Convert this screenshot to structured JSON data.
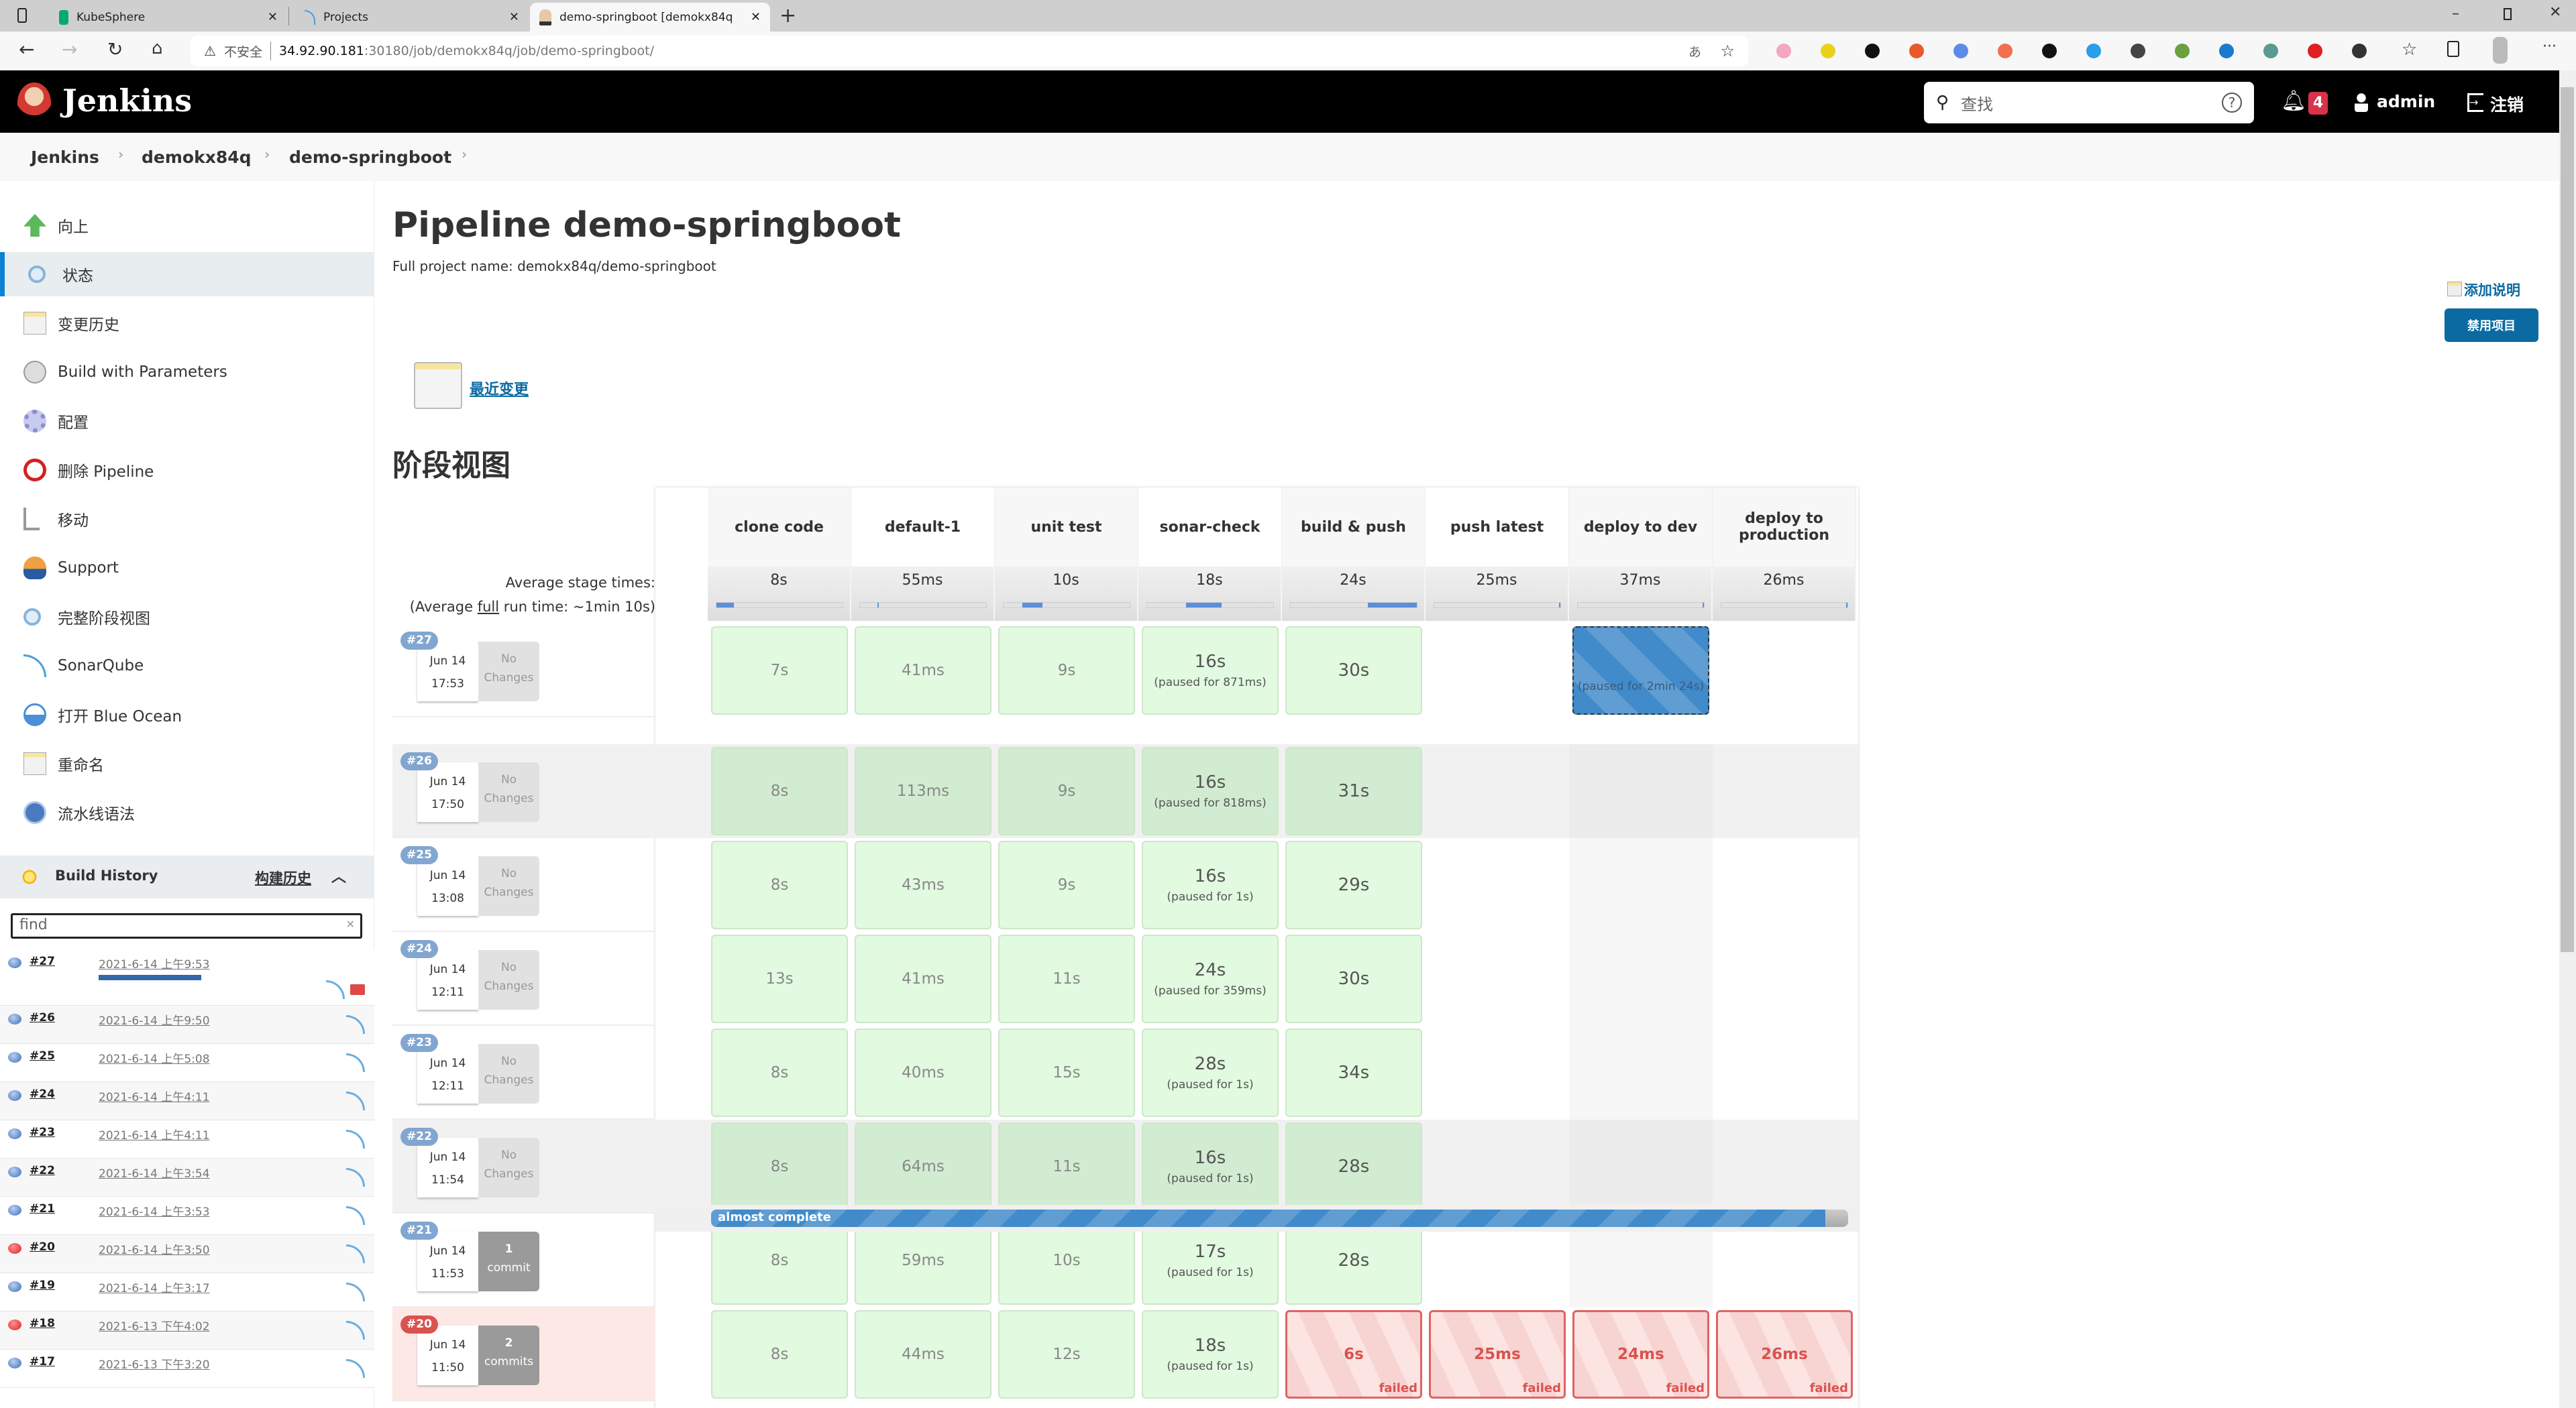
{
  "browser": {
    "tabs": [
      {
        "title": "KubeSphere",
        "icon": "kubesphere-icon",
        "color": "#00aa72"
      },
      {
        "title": "Projects",
        "icon": "sonarqube-icon",
        "color": "#4a9fd8"
      },
      {
        "title": "demo-springboot [demokx84q]",
        "icon": "jenkins-icon",
        "color": "#d33833"
      }
    ],
    "security_label": "不安全",
    "url_host": "34.92.90.181",
    "url_rest": ":30180/job/demokx84q/job/demo-springboot/",
    "extensions": [
      "#f4a7c0",
      "#e8d21a",
      "#111111",
      "#e85a2a",
      "#5a8de8",
      "#f07050",
      "#111111",
      "#2a9ee8",
      "#444444",
      "#6aa040",
      "#1a7ad0",
      "#5a9a90",
      "#e02020",
      "#333333"
    ]
  },
  "header": {
    "brand": "Jenkins",
    "search_placeholder": "查找",
    "notifications": "4",
    "user": "admin",
    "logout": "注销"
  },
  "breadcrumbs": [
    "Jenkins",
    "demokx84q",
    "demo-springboot"
  ],
  "sidebar": {
    "items": [
      {
        "label": "向上",
        "icon": "arrow-up-icon"
      },
      {
        "label": "状态",
        "icon": "magnifier-icon",
        "selected": true
      },
      {
        "label": "变更历史",
        "icon": "notepad-icon"
      },
      {
        "label": "Build with Parameters",
        "icon": "clock-play-icon"
      },
      {
        "label": "配置",
        "icon": "gear-icon"
      },
      {
        "label": "删除 Pipeline",
        "icon": "no-entry-icon"
      },
      {
        "label": "移动",
        "icon": "move-icon"
      },
      {
        "label": "Support",
        "icon": "support-person-icon"
      },
      {
        "label": "完整阶段视图",
        "icon": "magnifier-icon"
      },
      {
        "label": "SonarQube",
        "icon": "sonarqube-icon"
      },
      {
        "label": "打开 Blue Ocean",
        "icon": "blue-ocean-icon"
      },
      {
        "label": "重命名",
        "icon": "notepad-icon"
      },
      {
        "label": "流水线语法",
        "icon": "help-icon"
      }
    ]
  },
  "build_history": {
    "title": "Build History",
    "link": "构建历史",
    "find_placeholder": "find",
    "running_progress": 0.92,
    "rows": [
      {
        "num": "#27",
        "date": "2021-6-14 上午9:53",
        "status": "running"
      },
      {
        "num": "#26",
        "date": "2021-6-14 上午9:50",
        "status": "success"
      },
      {
        "num": "#25",
        "date": "2021-6-14 上午5:08",
        "status": "success"
      },
      {
        "num": "#24",
        "date": "2021-6-14 上午4:11",
        "status": "success"
      },
      {
        "num": "#23",
        "date": "2021-6-14 上午4:11",
        "status": "success"
      },
      {
        "num": "#22",
        "date": "2021-6-14 上午3:54",
        "status": "success"
      },
      {
        "num": "#21",
        "date": "2021-6-14 上午3:53",
        "status": "success"
      },
      {
        "num": "#20",
        "date": "2021-6-14 上午3:50",
        "status": "failed"
      },
      {
        "num": "#19",
        "date": "2021-6-14 上午3:17",
        "status": "success"
      },
      {
        "num": "#18",
        "date": "2021-6-13 下午4:02",
        "status": "failed"
      },
      {
        "num": "#17",
        "date": "2021-6-13 下午3:20",
        "status": "success"
      }
    ]
  },
  "main": {
    "title": "Pipeline demo-springboot",
    "full_name": "Full project name: demokx84q/demo-springboot",
    "add_description": "添加说明",
    "disable_button": "禁用项目",
    "recent_changes": "最近变更",
    "stage_view_title": "阶段视图"
  },
  "stage_view": {
    "avg_label": "Average stage times:",
    "avg_full_prefix": "(Average ",
    "avg_full_link": "full",
    "avg_full_suffix": " run time: ~1min 10s)",
    "stages": [
      {
        "name": "clone code",
        "avg": "8s",
        "bar": [
          0,
          0.14
        ]
      },
      {
        "name": "default-1",
        "avg": "55ms",
        "bar": [
          0.14,
          0.15
        ]
      },
      {
        "name": "unit test",
        "avg": "10s",
        "bar": [
          0.15,
          0.31
        ]
      },
      {
        "name": "sonar-check",
        "avg": "18s",
        "bar": [
          0.31,
          0.59
        ]
      },
      {
        "name": "build & push",
        "avg": "24s",
        "bar": [
          0.61,
          1.0
        ]
      },
      {
        "name": "push latest",
        "avg": "25ms",
        "bar": [
          0.99,
          1.0
        ]
      },
      {
        "name": "deploy to dev",
        "avg": "37ms",
        "bar": [
          0.99,
          1.0
        ]
      },
      {
        "name": "deploy to production",
        "avg": "26ms",
        "bar": [
          0.99,
          1.0
        ]
      }
    ],
    "progress": {
      "label": "almost complete",
      "fraction": 0.98
    },
    "builds": [
      {
        "num": "#27",
        "date": "Jun 14",
        "time": "17:53",
        "changes": [
          "No",
          "Changes"
        ],
        "status": "running",
        "cells": [
          {
            "t": "7s",
            "s": "ok"
          },
          {
            "t": "41ms",
            "s": "ok"
          },
          {
            "t": "9s",
            "s": "ok"
          },
          {
            "t": "16s",
            "p": "(paused for 871ms)",
            "s": "ok"
          },
          {
            "t": "30s",
            "s": "ok"
          },
          {
            "s": "empty"
          },
          {
            "p": "(paused for 2min 24s)",
            "s": "paused"
          },
          {
            "s": "empty"
          }
        ]
      },
      {
        "num": "#26",
        "date": "Jun 14",
        "time": "17:50",
        "changes": [
          "No",
          "Changes"
        ],
        "status": "success",
        "cells": [
          {
            "t": "8s",
            "s": "ok"
          },
          {
            "t": "113ms",
            "s": "ok"
          },
          {
            "t": "9s",
            "s": "ok"
          },
          {
            "t": "16s",
            "p": "(paused for 818ms)",
            "s": "ok"
          },
          {
            "t": "31s",
            "s": "ok"
          },
          {
            "s": "empty"
          },
          {
            "s": "empty"
          },
          {
            "s": "empty"
          }
        ]
      },
      {
        "num": "#25",
        "date": "Jun 14",
        "time": "13:08",
        "changes": [
          "No",
          "Changes"
        ],
        "status": "success",
        "cells": [
          {
            "t": "8s",
            "s": "ok"
          },
          {
            "t": "43ms",
            "s": "ok"
          },
          {
            "t": "9s",
            "s": "ok"
          },
          {
            "t": "16s",
            "p": "(paused for 1s)",
            "s": "ok"
          },
          {
            "t": "29s",
            "s": "ok"
          },
          {
            "s": "empty"
          },
          {
            "s": "empty"
          },
          {
            "s": "empty"
          }
        ]
      },
      {
        "num": "#24",
        "date": "Jun 14",
        "time": "12:11",
        "changes": [
          "No",
          "Changes"
        ],
        "status": "success",
        "cells": [
          {
            "t": "13s",
            "s": "ok"
          },
          {
            "t": "41ms",
            "s": "ok"
          },
          {
            "t": "11s",
            "s": "ok"
          },
          {
            "t": "24s",
            "p": "(paused for 359ms)",
            "s": "ok"
          },
          {
            "t": "30s",
            "s": "ok"
          },
          {
            "s": "empty"
          },
          {
            "s": "empty"
          },
          {
            "s": "empty"
          }
        ]
      },
      {
        "num": "#23",
        "date": "Jun 14",
        "time": "12:11",
        "changes": [
          "No",
          "Changes"
        ],
        "status": "success",
        "cells": [
          {
            "t": "8s",
            "s": "ok"
          },
          {
            "t": "40ms",
            "s": "ok"
          },
          {
            "t": "15s",
            "s": "ok"
          },
          {
            "t": "28s",
            "p": "(paused for 1s)",
            "s": "ok"
          },
          {
            "t": "34s",
            "s": "ok"
          },
          {
            "s": "empty"
          },
          {
            "s": "empty"
          },
          {
            "s": "empty"
          }
        ]
      },
      {
        "num": "#22",
        "date": "Jun 14",
        "time": "11:54",
        "changes": [
          "No",
          "Changes"
        ],
        "status": "success",
        "cells": [
          {
            "t": "8s",
            "s": "ok"
          },
          {
            "t": "64ms",
            "s": "ok"
          },
          {
            "t": "11s",
            "s": "ok"
          },
          {
            "t": "16s",
            "p": "(paused for 1s)",
            "s": "ok"
          },
          {
            "t": "28s",
            "s": "ok"
          },
          {
            "s": "empty"
          },
          {
            "s": "empty"
          },
          {
            "s": "empty"
          }
        ]
      },
      {
        "num": "#21",
        "date": "Jun 14",
        "time": "11:53",
        "changes": [
          "1",
          "commit"
        ],
        "status": "success",
        "cells": [
          {
            "t": "8s",
            "s": "ok"
          },
          {
            "t": "59ms",
            "s": "ok"
          },
          {
            "t": "10s",
            "s": "ok"
          },
          {
            "t": "17s",
            "p": "(paused for 1s)",
            "s": "ok"
          },
          {
            "t": "28s",
            "s": "ok"
          },
          {
            "s": "empty"
          },
          {
            "s": "empty"
          },
          {
            "s": "empty"
          }
        ]
      },
      {
        "num": "#20",
        "date": "Jun 14",
        "time": "11:50",
        "changes": [
          "2",
          "commits"
        ],
        "status": "failed",
        "cells": [
          {
            "t": "8s",
            "s": "ok"
          },
          {
            "t": "44ms",
            "s": "ok"
          },
          {
            "t": "12s",
            "s": "ok"
          },
          {
            "t": "18s",
            "p": "(paused for 1s)",
            "s": "ok"
          },
          {
            "t": "6s",
            "f": "failed",
            "s": "failed"
          },
          {
            "t": "25ms",
            "f": "failed",
            "s": "failed"
          },
          {
            "t": "24ms",
            "f": "failed",
            "s": "failed"
          },
          {
            "t": "26ms",
            "f": "failed",
            "s": "failed"
          }
        ]
      }
    ]
  }
}
